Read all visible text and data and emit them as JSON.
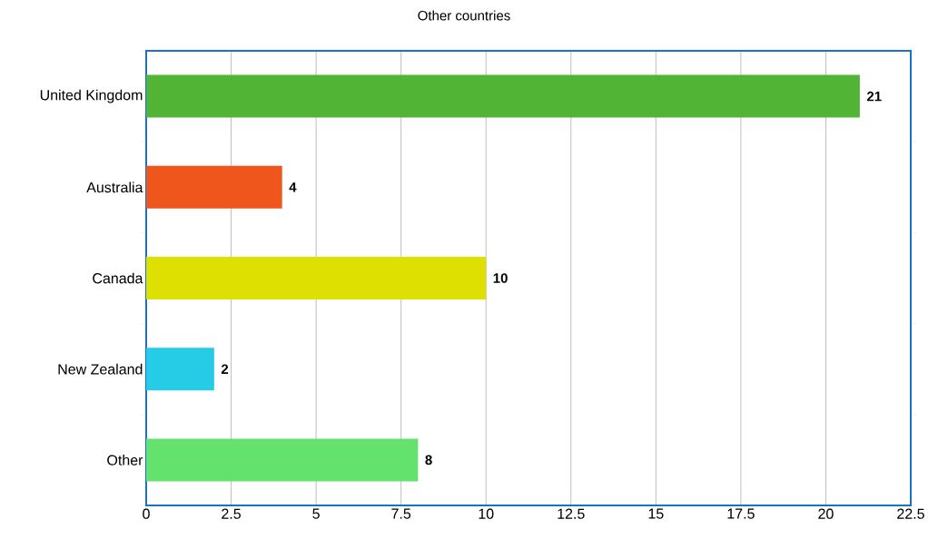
{
  "chart_data": {
    "type": "bar",
    "orientation": "horizontal",
    "title": "Other countries",
    "categories": [
      "United Kingdom",
      "Australia",
      "Canada",
      "New Zealand",
      "Other"
    ],
    "values": [
      21,
      4,
      10,
      2,
      8
    ],
    "colors": [
      "#52b434",
      "#ee561c",
      "#dde000",
      "#26cce6",
      "#64e26e"
    ],
    "xlim": [
      0,
      22.5
    ],
    "xticks": [
      0,
      2.5,
      5,
      7.5,
      10,
      12.5,
      15,
      17.5,
      20,
      22.5
    ],
    "grid": "x",
    "data_labels": true
  }
}
